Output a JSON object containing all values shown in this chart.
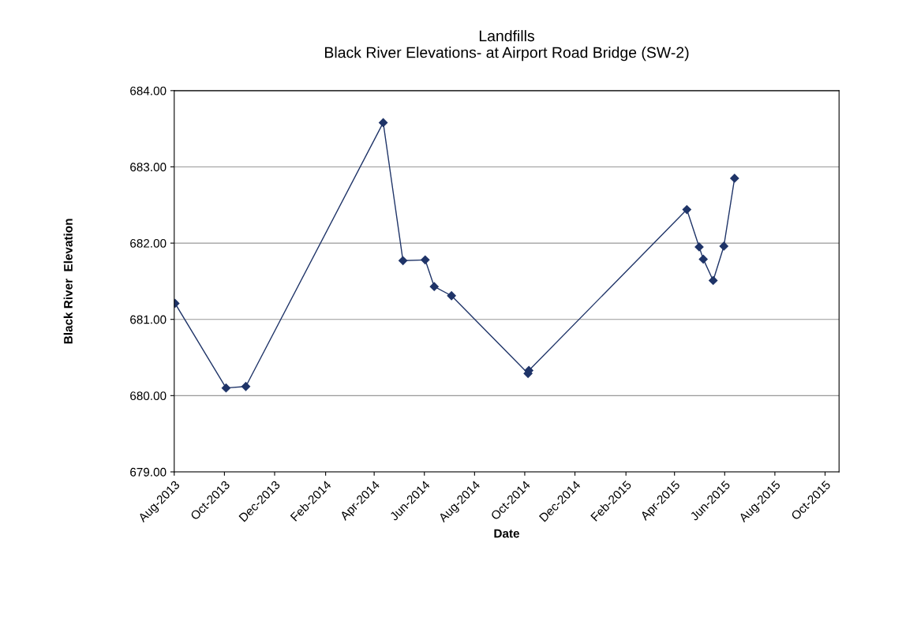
{
  "chart_data": {
    "type": "line",
    "title": "Landfills\nBlack River Elevations- at Airport Road Bridge (SW-2)",
    "xlabel": "Date",
    "ylabel": "Black River  Elevation",
    "x": [
      "2013-08-02",
      "2013-10-03",
      "2013-10-27",
      "2014-04-12",
      "2014-05-06",
      "2014-06-02",
      "2014-06-13",
      "2014-07-04",
      "2014-10-05",
      "2014-10-06",
      "2015-04-16",
      "2015-05-01",
      "2015-05-06",
      "2015-05-18",
      "2015-05-31",
      "2015-06-13"
    ],
    "series": [
      {
        "color": "#1f3468",
        "values": [
          681.21,
          680.1,
          680.12,
          683.58,
          681.77,
          681.78,
          681.43,
          681.31,
          680.29,
          680.33,
          682.44,
          681.95,
          681.79,
          681.51,
          681.96,
          682.85
        ]
      }
    ],
    "xlim": [
      "2013-08-01",
      "2015-10-18"
    ],
    "xticks": [
      {
        "value": "2013-08-01",
        "label": "Aug-2013"
      },
      {
        "value": "2013-10-01",
        "label": "Oct-2013"
      },
      {
        "value": "2013-12-01",
        "label": "Dec-2013"
      },
      {
        "value": "2014-02-01",
        "label": "Feb-2014"
      },
      {
        "value": "2014-04-01",
        "label": "Apr-2014"
      },
      {
        "value": "2014-06-01",
        "label": "Jun-2014"
      },
      {
        "value": "2014-08-01",
        "label": "Aug-2014"
      },
      {
        "value": "2014-10-01",
        "label": "Oct-2014"
      },
      {
        "value": "2014-12-01",
        "label": "Dec-2014"
      },
      {
        "value": "2015-02-01",
        "label": "Feb-2015"
      },
      {
        "value": "2015-04-01",
        "label": "Apr-2015"
      },
      {
        "value": "2015-06-01",
        "label": "Jun-2015"
      },
      {
        "value": "2015-08-01",
        "label": "Aug-2015"
      },
      {
        "value": "2015-10-01",
        "label": "Oct-2015"
      }
    ],
    "ylim": [
      679,
      684
    ],
    "yticks": [
      {
        "value": 679,
        "label": "679.00"
      },
      {
        "value": 680,
        "label": "680.00"
      },
      {
        "value": 681,
        "label": "681.00"
      },
      {
        "value": 682,
        "label": "682.00"
      },
      {
        "value": 683,
        "label": "683.00"
      },
      {
        "value": 684,
        "label": "684.00"
      }
    ],
    "grid": "y",
    "marker": "diamond",
    "line_style": "solid"
  }
}
